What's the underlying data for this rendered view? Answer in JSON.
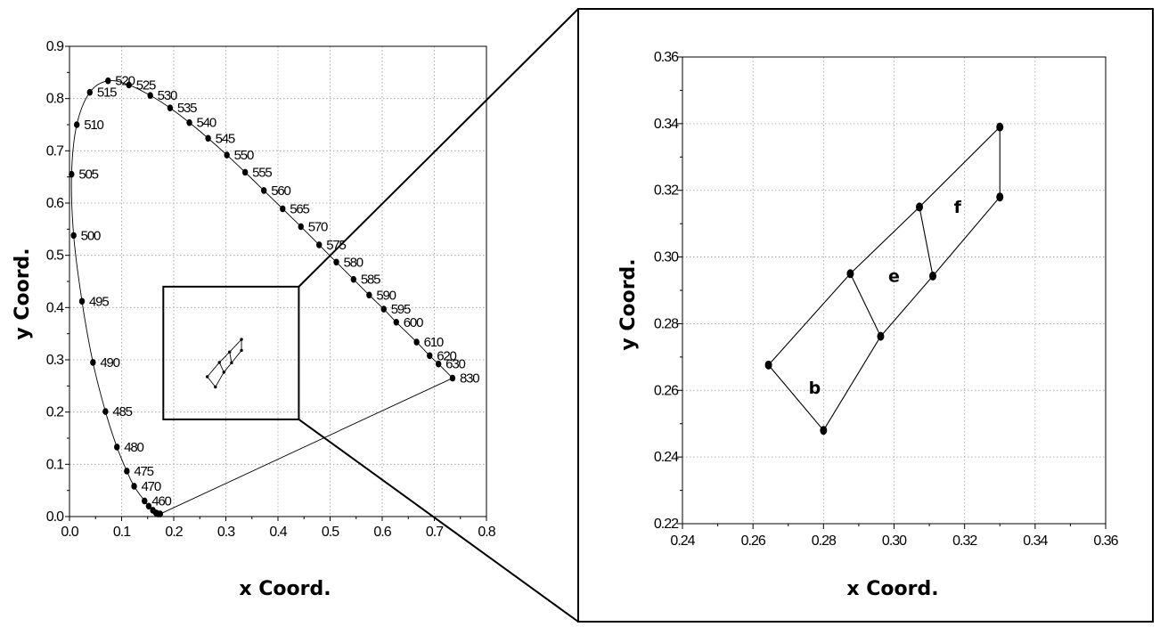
{
  "chart_data": [
    {
      "type": "line",
      "xlabel": "x Coord.",
      "ylabel": "y Coord.",
      "xlim": [
        0.0,
        0.8
      ],
      "ylim": [
        0.0,
        0.9
      ],
      "x_ticks": [
        "0.0",
        "0.1",
        "0.2",
        "0.3",
        "0.4",
        "0.5",
        "0.6",
        "0.7",
        "0.8"
      ],
      "y_ticks": [
        "0.0",
        "0.1",
        "0.2",
        "0.3",
        "0.4",
        "0.5",
        "0.6",
        "0.7",
        "0.8",
        "0.9"
      ],
      "grid": true,
      "spectral_locus": [
        {
          "label": "460",
          "x": 0.144,
          "y": 0.03
        },
        {
          "label": "470",
          "x": 0.124,
          "y": 0.058
        },
        {
          "label": "475",
          "x": 0.11,
          "y": 0.087
        },
        {
          "label": "480",
          "x": 0.091,
          "y": 0.133
        },
        {
          "label": "485",
          "x": 0.069,
          "y": 0.201
        },
        {
          "label": "490",
          "x": 0.045,
          "y": 0.295
        },
        {
          "label": "495",
          "x": 0.024,
          "y": 0.412
        },
        {
          "label": "500",
          "x": 0.008,
          "y": 0.538
        },
        {
          "label": "505",
          "x": 0.004,
          "y": 0.655
        },
        {
          "label": "510",
          "x": 0.014,
          "y": 0.75
        },
        {
          "label": "515",
          "x": 0.039,
          "y": 0.812
        },
        {
          "label": "520",
          "x": 0.074,
          "y": 0.834
        },
        {
          "label": "525",
          "x": 0.114,
          "y": 0.826
        },
        {
          "label": "530",
          "x": 0.155,
          "y": 0.806
        },
        {
          "label": "535",
          "x": 0.193,
          "y": 0.782
        },
        {
          "label": "540",
          "x": 0.23,
          "y": 0.754
        },
        {
          "label": "545",
          "x": 0.266,
          "y": 0.724
        },
        {
          "label": "550",
          "x": 0.302,
          "y": 0.692
        },
        {
          "label": "555",
          "x": 0.337,
          "y": 0.659
        },
        {
          "label": "560",
          "x": 0.373,
          "y": 0.624
        },
        {
          "label": "565",
          "x": 0.409,
          "y": 0.589
        },
        {
          "label": "570",
          "x": 0.444,
          "y": 0.555
        },
        {
          "label": "575",
          "x": 0.479,
          "y": 0.52
        },
        {
          "label": "580",
          "x": 0.512,
          "y": 0.487
        },
        {
          "label": "585",
          "x": 0.545,
          "y": 0.454
        },
        {
          "label": "590",
          "x": 0.575,
          "y": 0.424
        },
        {
          "label": "595",
          "x": 0.603,
          "y": 0.397
        },
        {
          "label": "600",
          "x": 0.627,
          "y": 0.372
        },
        {
          "label": "610",
          "x": 0.666,
          "y": 0.334
        },
        {
          "label": "620",
          "x": 0.691,
          "y": 0.308
        },
        {
          "label": "630",
          "x": 0.708,
          "y": 0.292
        },
        {
          "label": "830",
          "x": 0.735,
          "y": 0.265
        }
      ],
      "blue_tail": [
        {
          "x": 0.152,
          "y": 0.02
        },
        {
          "x": 0.16,
          "y": 0.012
        },
        {
          "x": 0.166,
          "y": 0.007
        },
        {
          "x": 0.17,
          "y": 0.005
        },
        {
          "x": 0.174,
          "y": 0.005
        }
      ],
      "zoom_box": {
        "x0": 0.18,
        "x1": 0.44,
        "y0": 0.186,
        "y1": 0.44
      },
      "regions_outline": [
        [
          0.2644,
          0.2676
        ],
        [
          0.2876,
          0.295
        ],
        [
          0.3072,
          0.315
        ],
        [
          0.33,
          0.339
        ],
        [
          0.33,
          0.318
        ],
        [
          0.311,
          0.2943
        ],
        [
          0.2962,
          0.2762
        ],
        [
          0.28,
          0.248
        ],
        [
          0.2644,
          0.2676
        ]
      ],
      "region_dividers": [
        [
          [
            0.2876,
            0.295
          ],
          [
            0.2962,
            0.2762
          ]
        ],
        [
          [
            0.3072,
            0.315
          ],
          [
            0.311,
            0.2943
          ]
        ]
      ]
    },
    {
      "type": "line",
      "xlabel": "x  Coord.",
      "ylabel": "y Coord.",
      "xlim": [
        0.24,
        0.36
      ],
      "ylim": [
        0.22,
        0.36
      ],
      "x_ticks": [
        "0.24",
        "0.26",
        "0.28",
        "0.30",
        "0.32",
        "0.34",
        "0.36"
      ],
      "y_ticks": [
        "0.22",
        "0.24",
        "0.26",
        "0.28",
        "0.30",
        "0.32",
        "0.34",
        "0.36"
      ],
      "grid": true,
      "points": [
        {
          "x": 0.2644,
          "y": 0.2676
        },
        {
          "x": 0.28,
          "y": 0.248
        },
        {
          "x": 0.2876,
          "y": 0.295
        },
        {
          "x": 0.2962,
          "y": 0.2762
        },
        {
          "x": 0.3072,
          "y": 0.315
        },
        {
          "x": 0.311,
          "y": 0.2943
        },
        {
          "x": 0.33,
          "y": 0.339
        },
        {
          "x": 0.33,
          "y": 0.318
        }
      ],
      "region_labels": [
        {
          "text": "b",
          "x": 0.2775,
          "y": 0.259
        },
        {
          "text": "e",
          "x": 0.3,
          "y": 0.2925
        },
        {
          "text": "f",
          "x": 0.318,
          "y": 0.3132
        }
      ]
    }
  ]
}
